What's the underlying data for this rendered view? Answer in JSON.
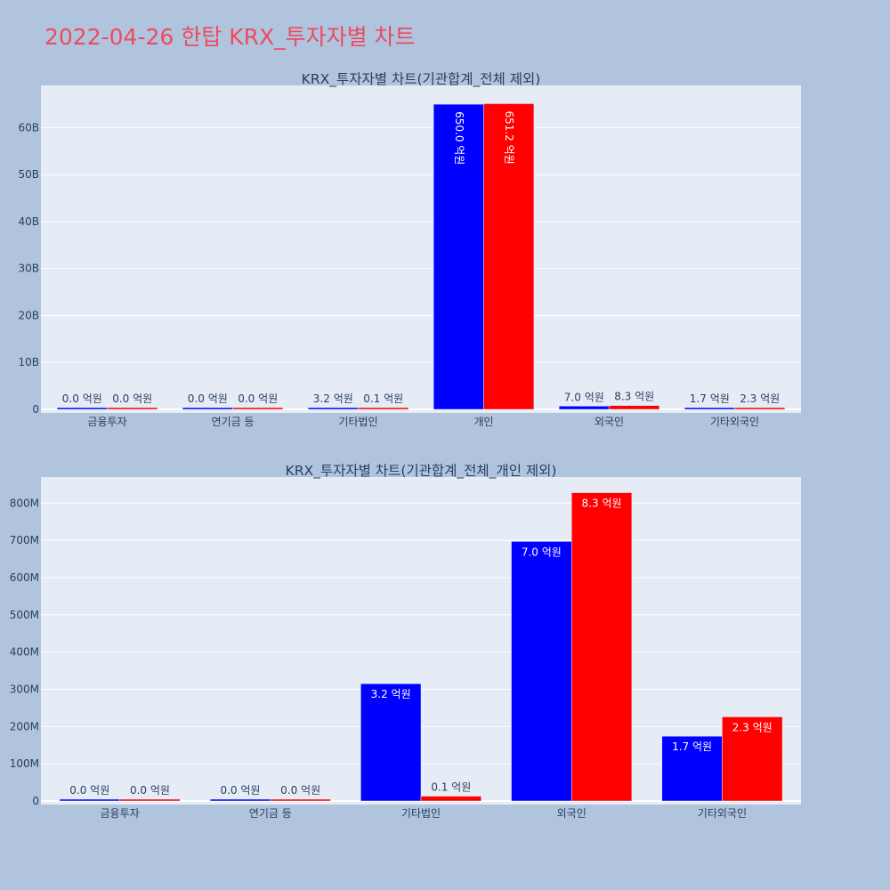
{
  "page": {
    "title": "2022-04-26 한탑 KRX_투자자별 차트"
  },
  "colors": {
    "background": "#b0c4de",
    "plot_background": "#e5ecf6",
    "gridline": "#ffffff",
    "series1": "#0000ff",
    "series2": "#ff0000",
    "title": "#ef4a5f",
    "text": "#2a3f5f"
  },
  "chart_data": [
    {
      "type": "bar",
      "title": "KRX_투자자별 차트(기관합계_전체 제외)",
      "categories": [
        "금융투자",
        "연기금 등",
        "기타법인",
        "개인",
        "외국인",
        "기타외국인"
      ],
      "series": [
        {
          "color": "#0000ff",
          "values": [
            0,
            0,
            320000000,
            65000000000,
            700000000,
            170000000
          ],
          "labels": [
            "0.0 억원",
            "0.0 억원",
            "3.2 억원",
            "650.0 억원",
            "7.0 억원",
            "1.7 억원"
          ]
        },
        {
          "color": "#ff0000",
          "values": [
            0,
            0,
            10000000,
            65120000000,
            830000000,
            230000000
          ],
          "labels": [
            "0.0 억원",
            "0.0 억원",
            "0.1 억원",
            "651.2 억원",
            "8.3 억원",
            "2.3 억원"
          ]
        }
      ],
      "ylim": [
        0,
        69000000000
      ],
      "yticks": [
        0,
        10000000000,
        20000000000,
        30000000000,
        40000000000,
        50000000000,
        60000000000
      ],
      "ytick_labels": [
        "0",
        "10B",
        "20B",
        "30B",
        "40B",
        "50B",
        "60B"
      ],
      "grid": true
    },
    {
      "type": "bar",
      "title": "KRX_투자자별 차트(기관합계_전체_개인 제외)",
      "categories": [
        "금융투자",
        "연기금 등",
        "기타법인",
        "외국인",
        "기타외국인"
      ],
      "series": [
        {
          "color": "#0000ff",
          "values": [
            0,
            0,
            315000000,
            697000000,
            174000000
          ],
          "labels": [
            "0.0 억원",
            "0.0 억원",
            "3.2 억원",
            "7.0 억원",
            "1.7 억원"
          ]
        },
        {
          "color": "#ff0000",
          "values": [
            0,
            0,
            13000000,
            828000000,
            226000000
          ],
          "labels": [
            "0.0 억원",
            "0.0 억원",
            "0.1 억원",
            "8.3 억원",
            "2.3 억원"
          ]
        }
      ],
      "ylim": [
        0,
        870000000
      ],
      "yticks": [
        0,
        100000000,
        200000000,
        300000000,
        400000000,
        500000000,
        600000000,
        700000000,
        800000000
      ],
      "ytick_labels": [
        "0",
        "100M",
        "200M",
        "300M",
        "400M",
        "500M",
        "600M",
        "700M",
        "800M"
      ],
      "grid": true
    }
  ]
}
